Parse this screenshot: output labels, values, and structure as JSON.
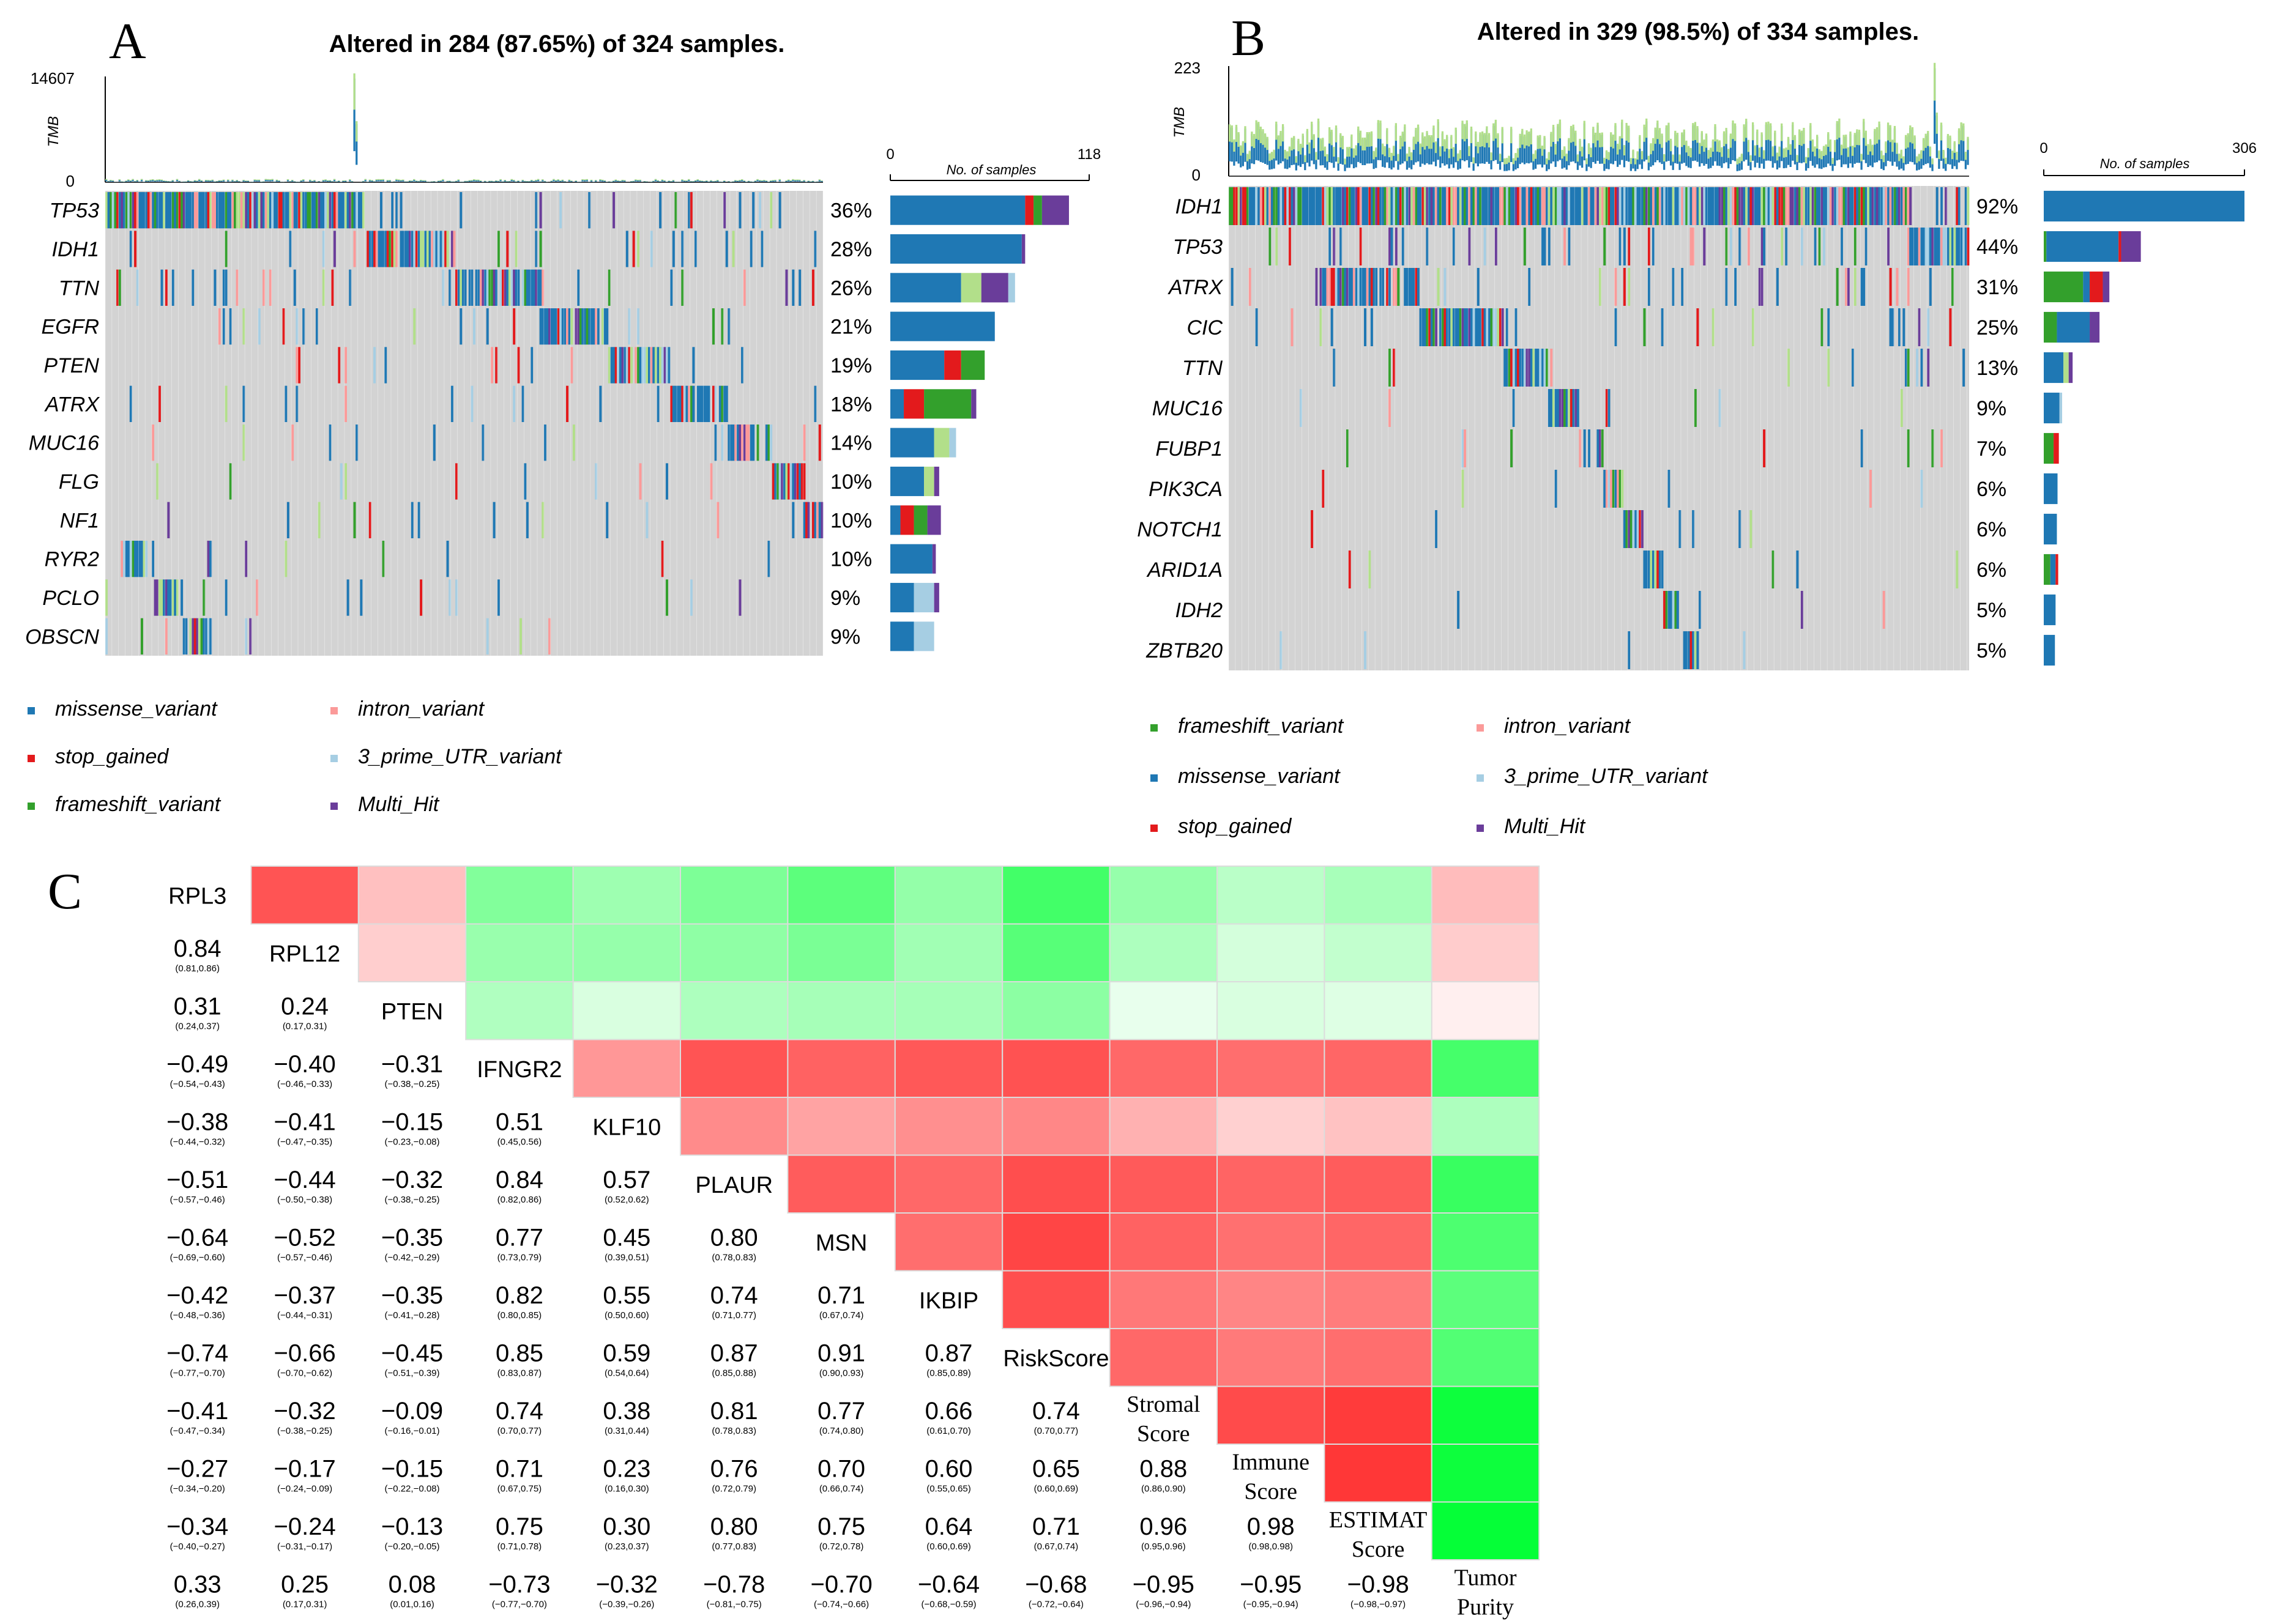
{
  "colors": {
    "missense": "#1f78b4",
    "stop": "#e31a1c",
    "frameshift": "#33a02c",
    "intron": "#fb9a99",
    "utr": "#a6cee3",
    "multi": "#6a3d9a",
    "light_green": "#b2df8a",
    "grey": "#d3d3d3",
    "corr_pos": "#ff3333",
    "corr_neg": "#00ff33"
  },
  "panel_a": {
    "letter": "A",
    "title": "Altered in 284 (87.65%) of 324 samples.",
    "tmb_label": "TMB",
    "tmb_max": "14607",
    "tmb_min": "0",
    "axis_title": "No. of samples",
    "axis_min": "0",
    "axis_max": "118",
    "genes": [
      "TP53",
      "IDH1",
      "TTN",
      "EGFR",
      "PTEN",
      "ATRX",
      "MUC16",
      "FLG",
      "NF1",
      "RYR2",
      "PCLO",
      "OBSCN"
    ],
    "percents": [
      "36%",
      "28%",
      "26%",
      "21%",
      "19%",
      "18%",
      "14%",
      "10%",
      "10%",
      "10%",
      "9%",
      "9%"
    ],
    "legend": [
      {
        "key": "missense",
        "label": "missense_variant"
      },
      {
        "key": "intron",
        "label": "intron_variant"
      },
      {
        "key": "stop",
        "label": "stop_gained"
      },
      {
        "key": "utr",
        "label": "3_prime_UTR_variant"
      },
      {
        "key": "frameshift",
        "label": "frameshift_variant"
      },
      {
        "key": "multi",
        "label": "Multi_Hit"
      }
    ]
  },
  "panel_b": {
    "letter": "B",
    "title": "Altered in 329 (98.5%) of 334 samples.",
    "tmb_label": "TMB",
    "tmb_max": "223",
    "tmb_min": "0",
    "axis_title": "No. of samples",
    "axis_min": "0",
    "axis_max": "306",
    "genes": [
      "IDH1",
      "TP53",
      "ATRX",
      "CIC",
      "TTN",
      "MUC16",
      "FUBP1",
      "PIK3CA",
      "NOTCH1",
      "ARID1A",
      "IDH2",
      "ZBTB20"
    ],
    "percents": [
      "92%",
      "44%",
      "31%",
      "25%",
      "13%",
      "9%",
      "7%",
      "6%",
      "6%",
      "6%",
      "5%",
      "5%"
    ],
    "legend": [
      {
        "key": "frameshift",
        "label": "frameshift_variant"
      },
      {
        "key": "intron",
        "label": "intron_variant"
      },
      {
        "key": "missense",
        "label": "missense_variant"
      },
      {
        "key": "utr",
        "label": "3_prime_UTR_variant"
      },
      {
        "key": "stop",
        "label": "stop_gained"
      },
      {
        "key": "multi",
        "label": "Multi_Hit"
      }
    ]
  },
  "panel_c": {
    "letter": "C",
    "vars": [
      "RPL3",
      "RPL12",
      "PTEN",
      "IFNGR2",
      "KLF10",
      "PLAUR",
      "MSN",
      "IKBIP",
      "RiskScore",
      "Stromal Score",
      "Immune Score",
      "ESTIMAT Score",
      "Tumor Purity"
    ],
    "serif_vars": [
      9,
      10,
      11,
      12
    ]
  },
  "chart_data": [
    {
      "type": "heatmap",
      "title": "Altered in 284 (87.65%) of 324 samples.",
      "samples": 324,
      "altered": 284,
      "genes": [
        "TP53",
        "IDH1",
        "TTN",
        "EGFR",
        "PTEN",
        "ATRX",
        "MUC16",
        "FLG",
        "NF1",
        "RYR2",
        "PCLO",
        "OBSCN"
      ],
      "altered_percent": [
        36,
        28,
        26,
        21,
        19,
        18,
        14,
        10,
        10,
        10,
        9,
        9
      ],
      "tmb_range": [
        0,
        14607
      ],
      "count_axis": [
        0,
        118
      ],
      "bar_composition": [
        {
          "missense": 80,
          "stop": 5,
          "frameshift": 5,
          "multi": 16
        },
        {
          "missense": 78,
          "multi": 2
        },
        {
          "missense": 42,
          "light_green": 12,
          "multi": 16,
          "utr": 4
        },
        {
          "missense": 62
        },
        {
          "missense": 32,
          "stop": 10,
          "frameshift": 14
        },
        {
          "missense": 8,
          "stop": 12,
          "frameshift": 28,
          "multi": 3
        },
        {
          "missense": 26,
          "light_green": 9,
          "utr": 4
        },
        {
          "missense": 20,
          "light_green": 6,
          "multi": 3
        },
        {
          "missense": 6,
          "stop": 8,
          "frameshift": 8,
          "multi": 8
        },
        {
          "missense": 25,
          "multi": 2
        },
        {
          "missense": 14,
          "utr": 12,
          "multi": 3
        },
        {
          "missense": 14,
          "utr": 12
        }
      ]
    },
    {
      "type": "heatmap",
      "title": "Altered in 329 (98.5%) of 334 samples.",
      "samples": 334,
      "altered": 329,
      "genes": [
        "IDH1",
        "TP53",
        "ATRX",
        "CIC",
        "TTN",
        "MUC16",
        "FUBP1",
        "PIK3CA",
        "NOTCH1",
        "ARID1A",
        "IDH2",
        "ZBTB20"
      ],
      "altered_percent": [
        92,
        44,
        31,
        25,
        13,
        9,
        7,
        6,
        6,
        6,
        5,
        5
      ],
      "tmb_range": [
        0,
        223
      ],
      "count_axis": [
        0,
        306
      ],
      "bar_composition": [
        {
          "missense": 306
        },
        {
          "frameshift": 4,
          "missense": 110,
          "stop": 4,
          "multi": 30
        },
        {
          "frameshift": 60,
          "missense": 10,
          "stop": 20,
          "multi": 10
        },
        {
          "frameshift": 20,
          "missense": 50,
          "multi": 15
        },
        {
          "missense": 30,
          "light_green": 8,
          "multi": 6
        },
        {
          "missense": 24,
          "utr": 4
        },
        {
          "frameshift": 15,
          "stop": 8
        },
        {
          "missense": 21
        },
        {
          "missense": 20
        },
        {
          "frameshift": 10,
          "missense": 8,
          "stop": 4
        },
        {
          "missense": 18
        },
        {
          "missense": 17
        }
      ]
    },
    {
      "type": "heatmap",
      "title": "",
      "variables": [
        "RPL3",
        "RPL12",
        "PTEN",
        "IFNGR2",
        "KLF10",
        "PLAUR",
        "MSN",
        "IKBIP",
        "RiskScore",
        "Stromal Score",
        "Immune Score",
        "ESTIMAT Score",
        "Tumor Purity"
      ],
      "lower_triangle": [
        {
          "row": "RPL12",
          "values": [
            "0.84"
          ],
          "ci": [
            "(0.81,0.86)"
          ]
        },
        {
          "row": "PTEN",
          "values": [
            "0.31",
            "0.24"
          ],
          "ci": [
            "(0.24,0.37)",
            "(0.17,0.31)"
          ]
        },
        {
          "row": "IFNGR2",
          "values": [
            "−0.49",
            "−0.40",
            "−0.31"
          ],
          "ci": [
            "(−0.54,−0.43)",
            "(−0.46,−0.33)",
            "(−0.38,−0.25)"
          ]
        },
        {
          "row": "KLF10",
          "values": [
            "−0.38",
            "−0.41",
            "−0.15",
            "0.51"
          ],
          "ci": [
            "(−0.44,−0.32)",
            "(−0.47,−0.35)",
            "(−0.23,−0.08)",
            "(0.45,0.56)"
          ]
        },
        {
          "row": "PLAUR",
          "values": [
            "−0.51",
            "−0.44",
            "−0.32",
            "0.84",
            "0.57"
          ],
          "ci": [
            "(−0.57,−0.46)",
            "(−0.50,−0.38)",
            "(−0.38,−0.25)",
            "(0.82,0.86)",
            "(0.52,0.62)"
          ]
        },
        {
          "row": "MSN",
          "values": [
            "−0.64",
            "−0.52",
            "−0.35",
            "0.77",
            "0.45",
            "0.80"
          ],
          "ci": [
            "(−0.69,−0.60)",
            "(−0.57,−0.46)",
            "(−0.42,−0.29)",
            "(0.73,0.79)",
            "(0.39,0.51)",
            "(0.78,0.83)"
          ]
        },
        {
          "row": "IKBIP",
          "values": [
            "−0.42",
            "−0.37",
            "−0.35",
            "0.82",
            "0.55",
            "0.74",
            "0.71"
          ],
          "ci": [
            "(−0.48,−0.36)",
            "(−0.44,−0.31)",
            "(−0.41,−0.28)",
            "(0.80,0.85)",
            "(0.50,0.60)",
            "(0.71,0.77)",
            "(0.67,0.74)"
          ]
        },
        {
          "row": "RiskScore",
          "values": [
            "−0.74",
            "−0.66",
            "−0.45",
            "0.85",
            "0.59",
            "0.87",
            "0.91",
            "0.87"
          ],
          "ci": [
            "(−0.77,−0.70)",
            "(−0.70,−0.62)",
            "(−0.51,−0.39)",
            "(0.83,0.87)",
            "(0.54,0.64)",
            "(0.85,0.88)",
            "(0.90,0.93)",
            "(0.85,0.89)"
          ]
        },
        {
          "row": "Stromal Score",
          "values": [
            "−0.41",
            "−0.32",
            "−0.09",
            "0.74",
            "0.38",
            "0.81",
            "0.77",
            "0.66",
            "0.74"
          ],
          "ci": [
            "(−0.47,−0.34)",
            "(−0.38,−0.25)",
            "(−0.16,−0.01)",
            "(0.70,0.77)",
            "(0.31,0.44)",
            "(0.78,0.83)",
            "(0.74,0.80)",
            "(0.61,0.70)",
            "(0.70,0.77)"
          ]
        },
        {
          "row": "Immune Score",
          "values": [
            "−0.27",
            "−0.17",
            "−0.15",
            "0.71",
            "0.23",
            "0.76",
            "0.70",
            "0.60",
            "0.65",
            "0.88"
          ],
          "ci": [
            "(−0.34,−0.20)",
            "(−0.24,−0.09)",
            "(−0.22,−0.08)",
            "(0.67,0.75)",
            "(0.16,0.30)",
            "(0.72,0.79)",
            "(0.66,0.74)",
            "(0.55,0.65)",
            "(0.60,0.69)",
            "(0.86,0.90)"
          ]
        },
        {
          "row": "ESTIMAT Score",
          "values": [
            "−0.34",
            "−0.24",
            "−0.13",
            "0.75",
            "0.30",
            "0.80",
            "0.75",
            "0.64",
            "0.71",
            "0.96",
            "0.98"
          ],
          "ci": [
            "(−0.40,−0.27)",
            "(−0.31,−0.17)",
            "(−0.20,−0.05)",
            "(0.71,0.78)",
            "(0.23,0.37)",
            "(0.77,0.83)",
            "(0.72,0.78)",
            "(0.60,0.69)",
            "(0.67,0.74)",
            "(0.95,0.96)",
            "(0.98,0.98)"
          ]
        },
        {
          "row": "Tumor Purity",
          "values": [
            "0.33",
            "0.25",
            "0.08",
            "−0.73",
            "−0.32",
            "−0.78",
            "−0.70",
            "−0.64",
            "−0.68",
            "−0.95",
            "−0.95",
            "−0.98"
          ],
          "ci": [
            "(0.26,0.39)",
            "(0.17,0.31)",
            "(0.01,0.16)",
            "(−0.77,−0.70)",
            "(−0.39,−0.26)",
            "(−0.81,−0.75)",
            "(−0.74,−0.66)",
            "(−0.68,−0.59)",
            "(−0.72,−0.64)",
            "(−0.96,−0.94)",
            "(−0.95,−0.94)",
            "(−0.98,−0.97)"
          ]
        }
      ]
    }
  ]
}
